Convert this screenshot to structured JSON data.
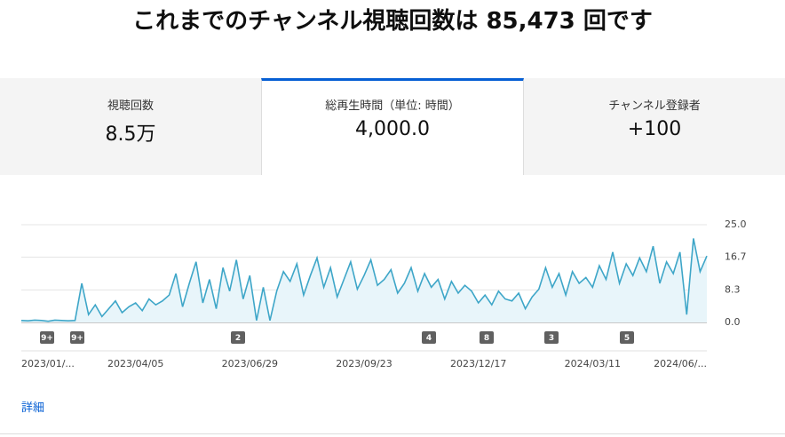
{
  "header": {
    "title": "これまでのチャンネル視聴回数は 85,473 回です"
  },
  "tabs": [
    {
      "label": "視聴回数",
      "value": "8.5万"
    },
    {
      "label": "総再生時間（単位: 時間）",
      "value": "4,000.0"
    },
    {
      "label": "チャンネル登録者",
      "value": "+100"
    }
  ],
  "chart_data": {
    "type": "line",
    "categories": [
      "2023/01/...",
      null,
      null,
      null,
      null,
      null,
      null,
      null,
      null,
      null,
      null,
      null,
      null,
      null,
      null,
      null,
      null,
      "2023/04/05",
      null,
      null,
      null,
      null,
      null,
      null,
      null,
      null,
      null,
      null,
      null,
      null,
      null,
      null,
      null,
      null,
      "2023/06/29",
      null,
      null,
      null,
      null,
      null,
      null,
      null,
      null,
      null,
      null,
      null,
      null,
      null,
      null,
      null,
      null,
      "2023/09/23",
      null,
      null,
      null,
      null,
      null,
      null,
      null,
      null,
      null,
      null,
      null,
      null,
      null,
      null,
      null,
      null,
      "2023/12/17",
      null,
      null,
      null,
      null,
      null,
      null,
      null,
      null,
      null,
      null,
      null,
      null,
      null,
      null,
      null,
      null,
      "2024/03/11",
      null,
      null,
      null,
      null,
      null,
      null,
      null,
      null,
      null,
      null,
      null,
      null,
      null,
      null,
      null,
      null,
      "2024/06/..."
    ],
    "values": [
      0.5,
      0.4,
      0.6,
      0.5,
      0.3,
      0.6,
      0.5,
      0.4,
      0.5,
      10.0,
      2.0,
      4.5,
      1.5,
      3.5,
      5.5,
      2.5,
      4.0,
      5.0,
      3.0,
      6.0,
      4.5,
      5.5,
      7.0,
      12.5,
      4.0,
      10.0,
      15.5,
      5.0,
      11.0,
      3.5,
      14.0,
      8.0,
      16.0,
      6.0,
      12.0,
      0.5,
      9.0,
      0.5,
      8.0,
      13.0,
      10.5,
      15.0,
      7.0,
      12.0,
      16.5,
      9.0,
      14.0,
      6.5,
      11.0,
      15.5,
      8.5,
      12.0,
      16.0,
      9.5,
      11.0,
      13.5,
      7.5,
      10.0,
      14.0,
      8.0,
      12.5,
      9.0,
      11.0,
      6.0,
      10.5,
      7.5,
      9.5,
      8.0,
      5.0,
      7.0,
      4.5,
      8.0,
      6.0,
      5.5,
      7.5,
      3.5,
      6.5,
      8.5,
      14.0,
      9.0,
      12.5,
      7.0,
      13.0,
      10.0,
      11.5,
      9.0,
      14.5,
      11.0,
      18.0,
      10.0,
      15.0,
      12.0,
      16.5,
      13.0,
      19.5,
      10.0,
      15.5,
      12.5,
      18.0,
      2.0,
      21.5,
      13.0,
      17.0
    ],
    "color": "#3ea6c8",
    "ylim": [
      0,
      25
    ],
    "yticks": [
      {
        "value": 0,
        "label": "0.0"
      },
      8.3,
      16.7,
      {
        "value": 25,
        "label": "25.0"
      }
    ],
    "grid": true,
    "annotations": [
      "9+",
      "9+",
      "2",
      "4",
      "8",
      "3",
      "5"
    ]
  },
  "link": "詳細"
}
